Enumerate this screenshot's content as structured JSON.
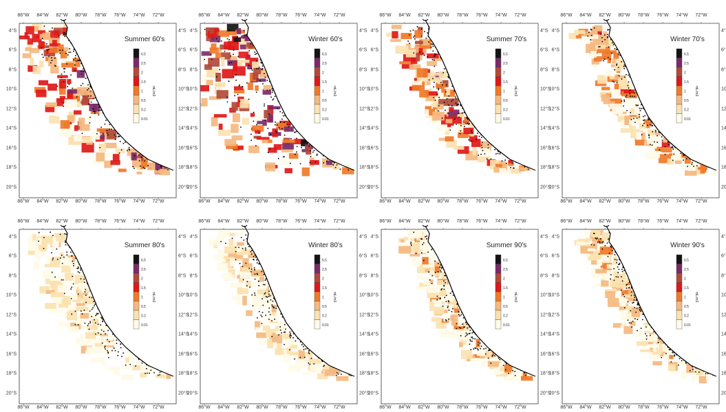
{
  "figure": {
    "panels": [
      {
        "title": "Summer 60's",
        "intensity": 0.85,
        "offshore": 0.55
      },
      {
        "title": "Winter 60's",
        "intensity": 0.95,
        "offshore": 1.0
      },
      {
        "title": "Summer 70's",
        "intensity": 0.75,
        "offshore": 0.35
      },
      {
        "title": "Winter 70's",
        "intensity": 0.45,
        "offshore": 0.25
      },
      {
        "title": "Summer 80's",
        "intensity": 0.12,
        "offshore": 0.45
      },
      {
        "title": "Winter 80's",
        "intensity": 0.15,
        "offshore": 0.35
      },
      {
        "title": "Summer 90's",
        "intensity": 0.3,
        "offshore": 0.2
      },
      {
        "title": "Winter 90's",
        "intensity": 0.25,
        "offshore": 0.2
      }
    ],
    "x_ticks": [
      "86°W",
      "84°W",
      "82°W",
      "80°W",
      "78°W",
      "76°W",
      "74°W",
      "72°W"
    ],
    "y_ticks": [
      "4°S",
      "6°S",
      "8°S",
      "10°S",
      "12°S",
      "14°S",
      "16°S",
      "18°S",
      "20°S"
    ],
    "legend": {
      "unit": "mL/m3",
      "levels": [
        "6.5",
        "2.5",
        "2",
        "1.5",
        "1",
        "0.5",
        "0.2",
        "0.01"
      ],
      "colors": [
        "#141414",
        "#7a2a6a",
        "#b24a3a",
        "#e01818",
        "#f07a2a",
        "#f4b880",
        "#fbe2b0",
        "#fffbe8"
      ]
    }
  }
}
